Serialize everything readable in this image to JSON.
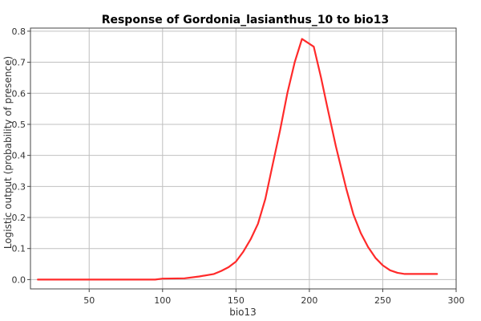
{
  "chart_data": {
    "type": "line",
    "title": "Response of Gordonia_lasianthus_10 to bio13",
    "xlabel": "bio13",
    "ylabel": "Logistic output (probability of presence)",
    "xlim": [
      10,
      300
    ],
    "ylim": [
      -0.03,
      0.81
    ],
    "xticks": [
      50,
      100,
      150,
      200,
      250,
      300
    ],
    "yticks": [
      0.0,
      0.1,
      0.2,
      0.3,
      0.4,
      0.5,
      0.6,
      0.7,
      0.8
    ],
    "xtick_labels": [
      "50",
      "100",
      "150",
      "200",
      "250",
      "300"
    ],
    "ytick_labels": [
      "0.0",
      "0.1",
      "0.2",
      "0.3",
      "0.4",
      "0.5",
      "0.6",
      "0.7",
      "0.8"
    ],
    "grid": true,
    "legend": "none",
    "series": [
      {
        "color": "#ff2a2a",
        "x": [
          15,
          50,
          95,
          100,
          115,
          125,
          135,
          140,
          145,
          150,
          155,
          160,
          165,
          170,
          175,
          180,
          185,
          190,
          195,
          203,
          208,
          212,
          218,
          225,
          230,
          235,
          240,
          245,
          250,
          255,
          260,
          265,
          287
        ],
        "y": [
          0.0,
          0.0,
          0.0,
          0.003,
          0.004,
          0.01,
          0.018,
          0.028,
          0.04,
          0.058,
          0.09,
          0.13,
          0.18,
          0.26,
          0.37,
          0.48,
          0.6,
          0.7,
          0.775,
          0.75,
          0.65,
          0.56,
          0.43,
          0.295,
          0.21,
          0.15,
          0.105,
          0.07,
          0.046,
          0.03,
          0.022,
          0.018,
          0.018
        ]
      }
    ]
  }
}
